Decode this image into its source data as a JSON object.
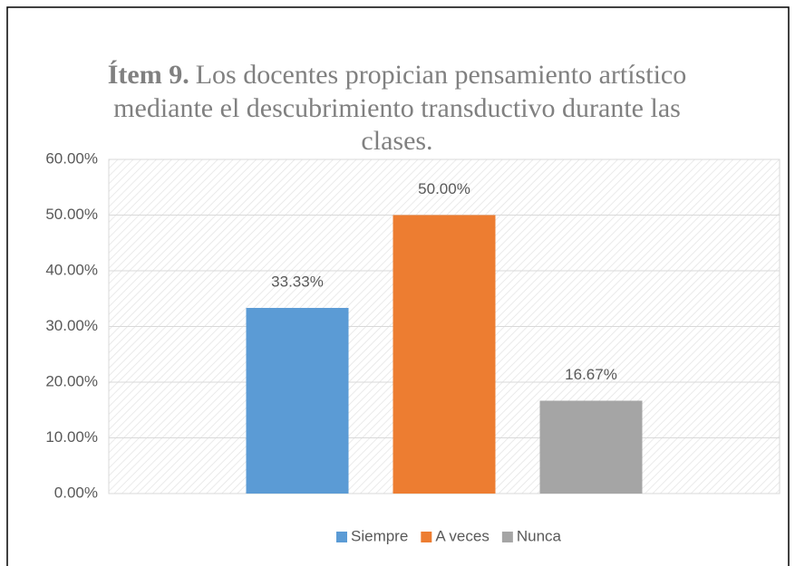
{
  "chart_data": {
    "type": "bar",
    "title_label": "Ítem 9.",
    "title_lines": [
      "Los docentes propician pensamiento artístico",
      "mediante el descubrimiento transductivo durante las",
      "clases."
    ],
    "categories": [
      "Siempre",
      "A veces",
      "Nunca"
    ],
    "values": [
      33.33,
      50,
      16.67
    ],
    "value_labels": [
      "33.33%",
      "50.00%",
      "16.67%"
    ],
    "colors": [
      "#5b9bd5",
      "#ed7d31",
      "#a5a5a5"
    ],
    "ylim": [
      0,
      60
    ],
    "yticks": [
      {
        "value": 0,
        "label": "0.00%"
      },
      {
        "value": 10,
        "label": "10.00%"
      },
      {
        "value": 20,
        "label": "20.00%"
      },
      {
        "value": 30,
        "label": "30.00%"
      },
      {
        "value": 40,
        "label": "40.00%"
      },
      {
        "value": 50,
        "label": "50.00%"
      },
      {
        "value": 60,
        "label": "60.00%"
      }
    ],
    "grid": true,
    "legend": "bottom"
  }
}
